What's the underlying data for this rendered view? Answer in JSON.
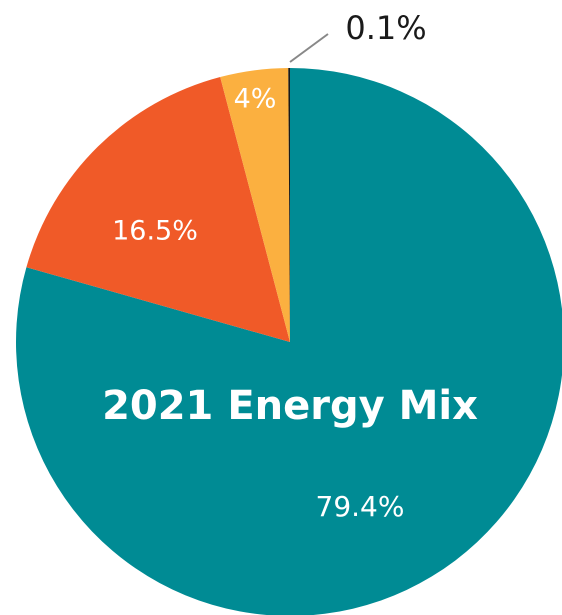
{
  "chart_data": {
    "type": "pie",
    "title": "2021 Energy Mix",
    "values": [
      79.4,
      16.5,
      4,
      0.1
    ],
    "value_labels": [
      "79.4%",
      "16.5%",
      "4%",
      "0.1%"
    ],
    "colors": [
      "#008b94",
      "#f05a28",
      "#fbb040",
      "#1a1a1a"
    ]
  }
}
